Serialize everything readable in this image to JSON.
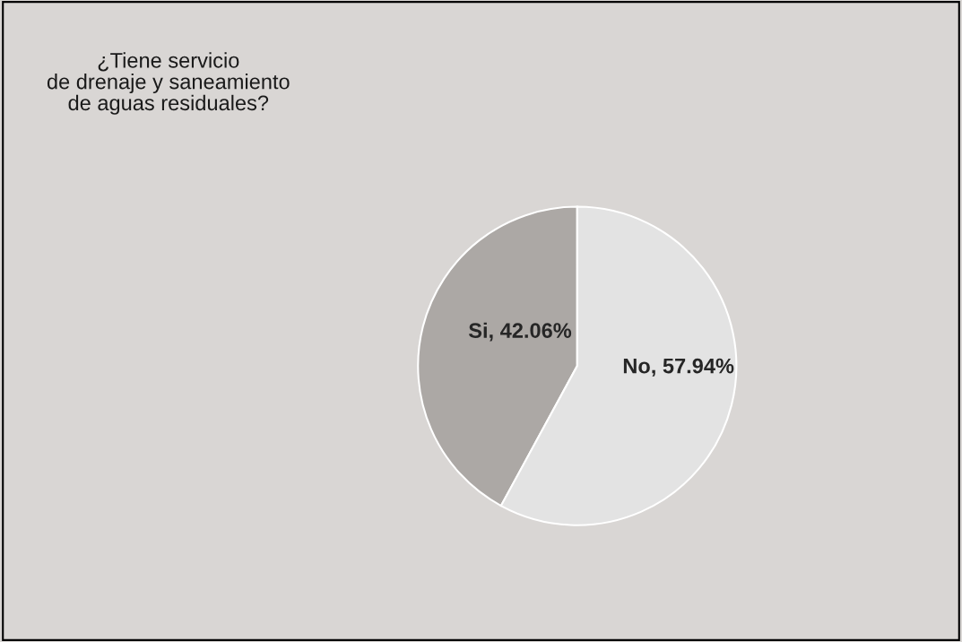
{
  "chart_data": {
    "type": "pie",
    "title": "¿Tiene servicio\nde drenaje y saneamiento\nde aguas residuales?",
    "categories": [
      "Si",
      "No"
    ],
    "values": [
      42.06,
      57.94
    ],
    "colors": [
      "#aca8a5",
      "#e3e3e3"
    ],
    "value_labels": [
      ", 42.06%",
      ", 57.94%"
    ]
  }
}
